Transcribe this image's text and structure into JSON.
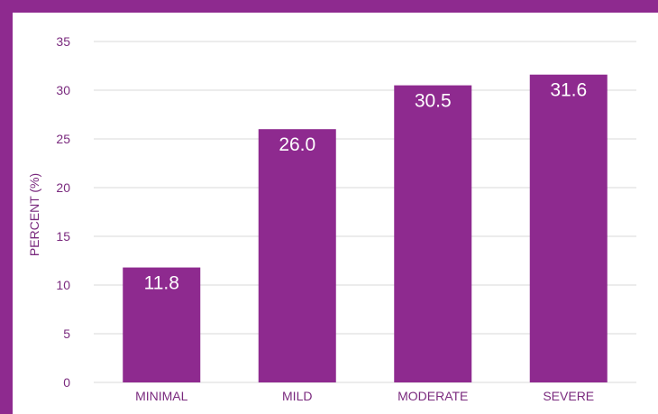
{
  "colors": {
    "frame": "#8e2a8f",
    "bar": "#8e2a8f",
    "grid": "#d9d9d9",
    "text": "#7a2a7e",
    "label": "#ffffff"
  },
  "chart_data": {
    "type": "bar",
    "categories": [
      "MINIMAL",
      "MILD",
      "MODERATE",
      "SEVERE"
    ],
    "values": [
      11.8,
      26.0,
      30.5,
      31.6
    ],
    "value_labels": [
      "11.8",
      "26.0",
      "30.5",
      "31.6"
    ],
    "title": "",
    "xlabel": "",
    "ylabel": "PERCENT (%)",
    "ylim": [
      0,
      35
    ],
    "yticks": [
      "0",
      "5",
      "10",
      "15",
      "20",
      "25",
      "30",
      "35"
    ],
    "grid": true,
    "legend": "none"
  }
}
